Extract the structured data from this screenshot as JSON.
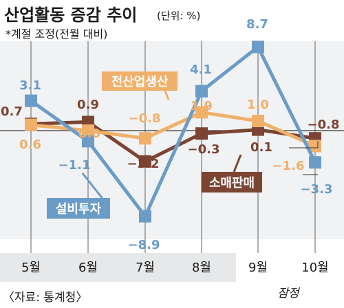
{
  "chart_data": {
    "type": "line",
    "title": "산업활동 증감 추이",
    "unit": "(단위: %)",
    "note": "*계절 조정(전월 대비)",
    "source": "〈자료: 통계청〉",
    "provisional_note": "잠정",
    "categories": [
      "5월",
      "6월",
      "7월",
      "8월",
      "9월",
      "10월"
    ],
    "grid": "vertical",
    "series": [
      {
        "name": "설비투자",
        "values": [
          3.1,
          -1.1,
          -8.9,
          4.1,
          8.7,
          -3.3
        ],
        "labels": [
          "3.1",
          "-1.1",
          "-8.9",
          "4.1",
          "8.7",
          "-3.3"
        ],
        "color": "#6b9cc8"
      },
      {
        "name": "전산업생산",
        "values": [
          0.6,
          0.0,
          -0.8,
          1.9,
          1.0,
          -1.6
        ],
        "labels": [
          "0.6",
          "0.0",
          "-0.8",
          "1.9",
          "1.0",
          "-1.6"
        ],
        "color": "#f0b06a"
      },
      {
        "name": "소매판매",
        "values": [
          0.7,
          0.9,
          -3.2,
          -0.3,
          0.1,
          -0.8
        ],
        "labels": [
          "0.7",
          "0.9",
          "-3.2",
          "-0.3",
          "0.1",
          "-0.8"
        ],
        "color": "#7b4433"
      }
    ]
  }
}
